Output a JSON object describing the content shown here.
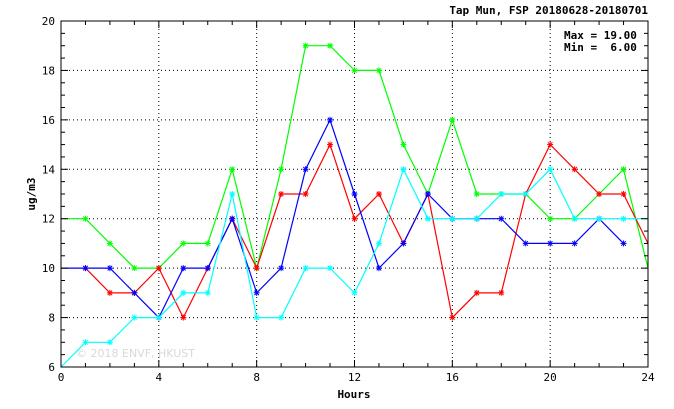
{
  "chart_data": {
    "type": "line",
    "title": "Tap Mun, FSP 20180628-20180701",
    "xlabel": "Hours",
    "ylabel": "ug/m3",
    "xlim": [
      0,
      24
    ],
    "ylim": [
      6,
      20
    ],
    "xticks": [
      0,
      4,
      8,
      12,
      16,
      20,
      24
    ],
    "yticks": [
      6,
      8,
      10,
      12,
      14,
      16,
      18,
      20
    ],
    "grid": true,
    "stats": {
      "max_label": "Max = 19.00",
      "min_label": "Min =  6.00"
    },
    "watermark": "© 2018 ENVF, HKUST",
    "series": [
      {
        "color": "#00ff00",
        "values": [
          [
            0,
            12
          ],
          [
            1,
            12
          ],
          [
            2,
            11
          ],
          [
            3,
            10
          ],
          [
            4,
            10
          ],
          [
            5,
            11
          ],
          [
            6,
            11
          ],
          [
            7,
            14
          ],
          [
            8,
            10
          ],
          [
            9,
            14
          ],
          [
            10,
            19
          ],
          [
            11,
            19
          ],
          [
            12,
            18
          ],
          [
            13,
            18
          ],
          [
            14,
            15
          ],
          [
            15,
            13
          ],
          [
            16,
            16
          ],
          [
            17,
            13
          ],
          [
            18,
            13
          ],
          [
            19,
            13
          ],
          [
            20,
            12
          ],
          [
            21,
            12
          ],
          [
            22,
            13
          ],
          [
            23,
            14
          ],
          [
            24,
            10
          ]
        ]
      },
      {
        "color": "#ff0000",
        "values": [
          [
            1,
            10
          ],
          [
            2,
            9
          ],
          [
            3,
            9
          ],
          [
            4,
            10
          ],
          [
            5,
            8
          ],
          [
            6,
            10
          ],
          [
            7,
            12
          ],
          [
            8,
            10
          ],
          [
            9,
            13
          ],
          [
            10,
            13
          ],
          [
            11,
            15
          ],
          [
            12,
            12
          ],
          [
            13,
            13
          ],
          [
            14,
            11
          ],
          [
            15,
            13
          ],
          [
            16,
            8
          ],
          [
            17,
            9
          ],
          [
            18,
            9
          ],
          [
            19,
            13
          ],
          [
            20,
            15
          ],
          [
            21,
            14
          ],
          [
            22,
            13
          ],
          [
            23,
            13
          ],
          [
            24,
            11
          ]
        ]
      },
      {
        "color": "#0000ff",
        "values": [
          [
            0,
            10
          ],
          [
            1,
            10
          ],
          [
            2,
            10
          ],
          [
            3,
            9
          ],
          [
            4,
            8
          ],
          [
            5,
            10
          ],
          [
            6,
            10
          ],
          [
            7,
            12
          ],
          [
            8,
            9
          ],
          [
            9,
            10
          ],
          [
            10,
            14
          ],
          [
            11,
            16
          ],
          [
            12,
            13
          ],
          [
            13,
            10
          ],
          [
            14,
            11
          ],
          [
            15,
            13
          ],
          [
            16,
            12
          ],
          [
            17,
            12
          ],
          [
            18,
            12
          ],
          [
            19,
            11
          ],
          [
            20,
            11
          ],
          [
            21,
            11
          ],
          [
            22,
            12
          ],
          [
            23,
            11
          ]
        ]
      },
      {
        "color": "#00ffff",
        "values": [
          [
            0,
            6
          ],
          [
            1,
            7
          ],
          [
            2,
            7
          ],
          [
            3,
            8
          ],
          [
            4,
            8
          ],
          [
            5,
            9
          ],
          [
            6,
            9
          ],
          [
            7,
            13
          ],
          [
            8,
            8
          ],
          [
            9,
            8
          ],
          [
            10,
            10
          ],
          [
            11,
            10
          ],
          [
            12,
            9
          ],
          [
            13,
            11
          ],
          [
            14,
            14
          ],
          [
            15,
            12
          ],
          [
            16,
            12
          ],
          [
            17,
            12
          ],
          [
            18,
            13
          ],
          [
            19,
            13
          ],
          [
            20,
            14
          ],
          [
            21,
            12
          ],
          [
            22,
            12
          ],
          [
            23,
            12
          ],
          [
            24,
            12
          ]
        ]
      }
    ]
  }
}
